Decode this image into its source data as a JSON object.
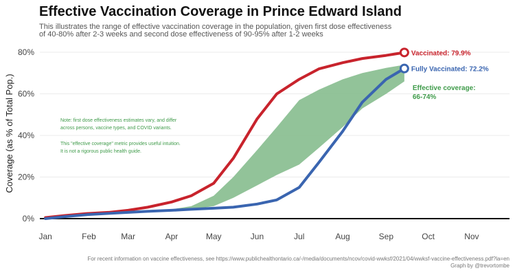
{
  "title": "Effective Vaccination Coverage in Prince Edward Island",
  "subtitle": [
    "This illustrates the range of effective vaccination coverage in the population, given first dose effectiveness",
    "of 40-80% after 2-3 weeks and second dose effectiveness of 90-95% after 1-2 weeks"
  ],
  "caption": [
    "For recent information on vaccine effectiveness, see https://www.publichealthontario.ca/-/media/documents/ncov/covid-wwksf/2021/04/wwksf-vaccine-effectiveness.pdf?la=en",
    "Graph by @trevortombe"
  ],
  "colors": {
    "vaccinated": "#c8232c",
    "fully": "#3a65b0",
    "effective": "#8cc094",
    "effective_text": "#3f9b4a"
  },
  "chart_data": {
    "type": "line",
    "ylabel": "Coverage (as % of Total Pop.)",
    "xlabel": "",
    "ylim": [
      0,
      82
    ],
    "xlim": [
      "2020-12-28",
      "2021-11-28"
    ],
    "x_tick_dates": [
      "2021-01-01",
      "2021-02-01",
      "2021-03-01",
      "2021-04-01",
      "2021-05-01",
      "2021-06-01",
      "2021-07-01",
      "2021-08-01",
      "2021-09-01",
      "2021-10-01",
      "2021-11-01"
    ],
    "x_tick_labels": [
      "Jan",
      "Feb",
      "Mar",
      "Apr",
      "May",
      "Jun",
      "Jul",
      "Aug",
      "Sep",
      "Oct",
      "Nov"
    ],
    "y_ticks": [
      0,
      20,
      40,
      60,
      80
    ],
    "y_tick_labels": [
      "0%",
      "20%",
      "40%",
      "60%",
      "80%"
    ],
    "grid": true,
    "series": [
      {
        "name": "Vaccinated",
        "end_label": "Vaccinated: 79.9%",
        "points": [
          [
            "2021-01-01",
            0.5
          ],
          [
            "2021-01-15",
            1.5
          ],
          [
            "2021-02-01",
            2.5
          ],
          [
            "2021-02-15",
            3
          ],
          [
            "2021-03-01",
            4
          ],
          [
            "2021-03-15",
            5.5
          ],
          [
            "2021-04-01",
            8
          ],
          [
            "2021-04-15",
            11
          ],
          [
            "2021-05-01",
            17
          ],
          [
            "2021-05-15",
            29
          ],
          [
            "2021-06-01",
            48
          ],
          [
            "2021-06-15",
            60
          ],
          [
            "2021-07-01",
            67
          ],
          [
            "2021-07-15",
            72
          ],
          [
            "2021-08-01",
            75
          ],
          [
            "2021-08-15",
            77
          ],
          [
            "2021-09-01",
            78.5
          ],
          [
            "2021-09-14",
            79.9
          ]
        ]
      },
      {
        "name": "Fully Vaccinated",
        "end_label": "Fully Vaccinated: 72.2%",
        "points": [
          [
            "2021-01-01",
            0
          ],
          [
            "2021-01-15",
            1
          ],
          [
            "2021-02-01",
            2
          ],
          [
            "2021-02-15",
            2.5
          ],
          [
            "2021-03-01",
            3
          ],
          [
            "2021-03-15",
            3.5
          ],
          [
            "2021-04-01",
            4
          ],
          [
            "2021-04-15",
            4.5
          ],
          [
            "2021-05-01",
            5
          ],
          [
            "2021-05-15",
            5.5
          ],
          [
            "2021-06-01",
            7
          ],
          [
            "2021-06-15",
            9
          ],
          [
            "2021-07-01",
            15
          ],
          [
            "2021-07-15",
            27
          ],
          [
            "2021-08-01",
            42
          ],
          [
            "2021-08-15",
            56
          ],
          [
            "2021-09-01",
            67
          ],
          [
            "2021-09-14",
            72.2
          ]
        ]
      }
    ],
    "band": {
      "name": "Effective coverage",
      "label": [
        "Effective coverage:",
        "66-74%"
      ],
      "lower": [
        [
          "2021-04-01",
          3.5
        ],
        [
          "2021-04-15",
          4.5
        ],
        [
          "2021-05-01",
          6
        ],
        [
          "2021-05-15",
          10
        ],
        [
          "2021-06-01",
          16
        ],
        [
          "2021-06-15",
          21
        ],
        [
          "2021-07-01",
          26
        ],
        [
          "2021-07-15",
          34
        ],
        [
          "2021-08-01",
          44
        ],
        [
          "2021-08-15",
          53
        ],
        [
          "2021-09-01",
          60
        ],
        [
          "2021-09-14",
          66
        ]
      ],
      "upper": [
        [
          "2021-04-01",
          4.5
        ],
        [
          "2021-04-15",
          6
        ],
        [
          "2021-05-01",
          11
        ],
        [
          "2021-05-15",
          20
        ],
        [
          "2021-06-01",
          33
        ],
        [
          "2021-06-15",
          44
        ],
        [
          "2021-07-01",
          57
        ],
        [
          "2021-07-15",
          62
        ],
        [
          "2021-08-01",
          67
        ],
        [
          "2021-08-15",
          70
        ],
        [
          "2021-09-01",
          72.5
        ],
        [
          "2021-09-14",
          74
        ]
      ]
    },
    "annotations": [
      "Note: first dose effectiveness estimates vary, and differ",
      "across persons, vaccine types, and COVID variants.",
      "This \"effective coverage\" metric provides useful intuition.",
      "It is not a rigorous public health guide."
    ]
  }
}
